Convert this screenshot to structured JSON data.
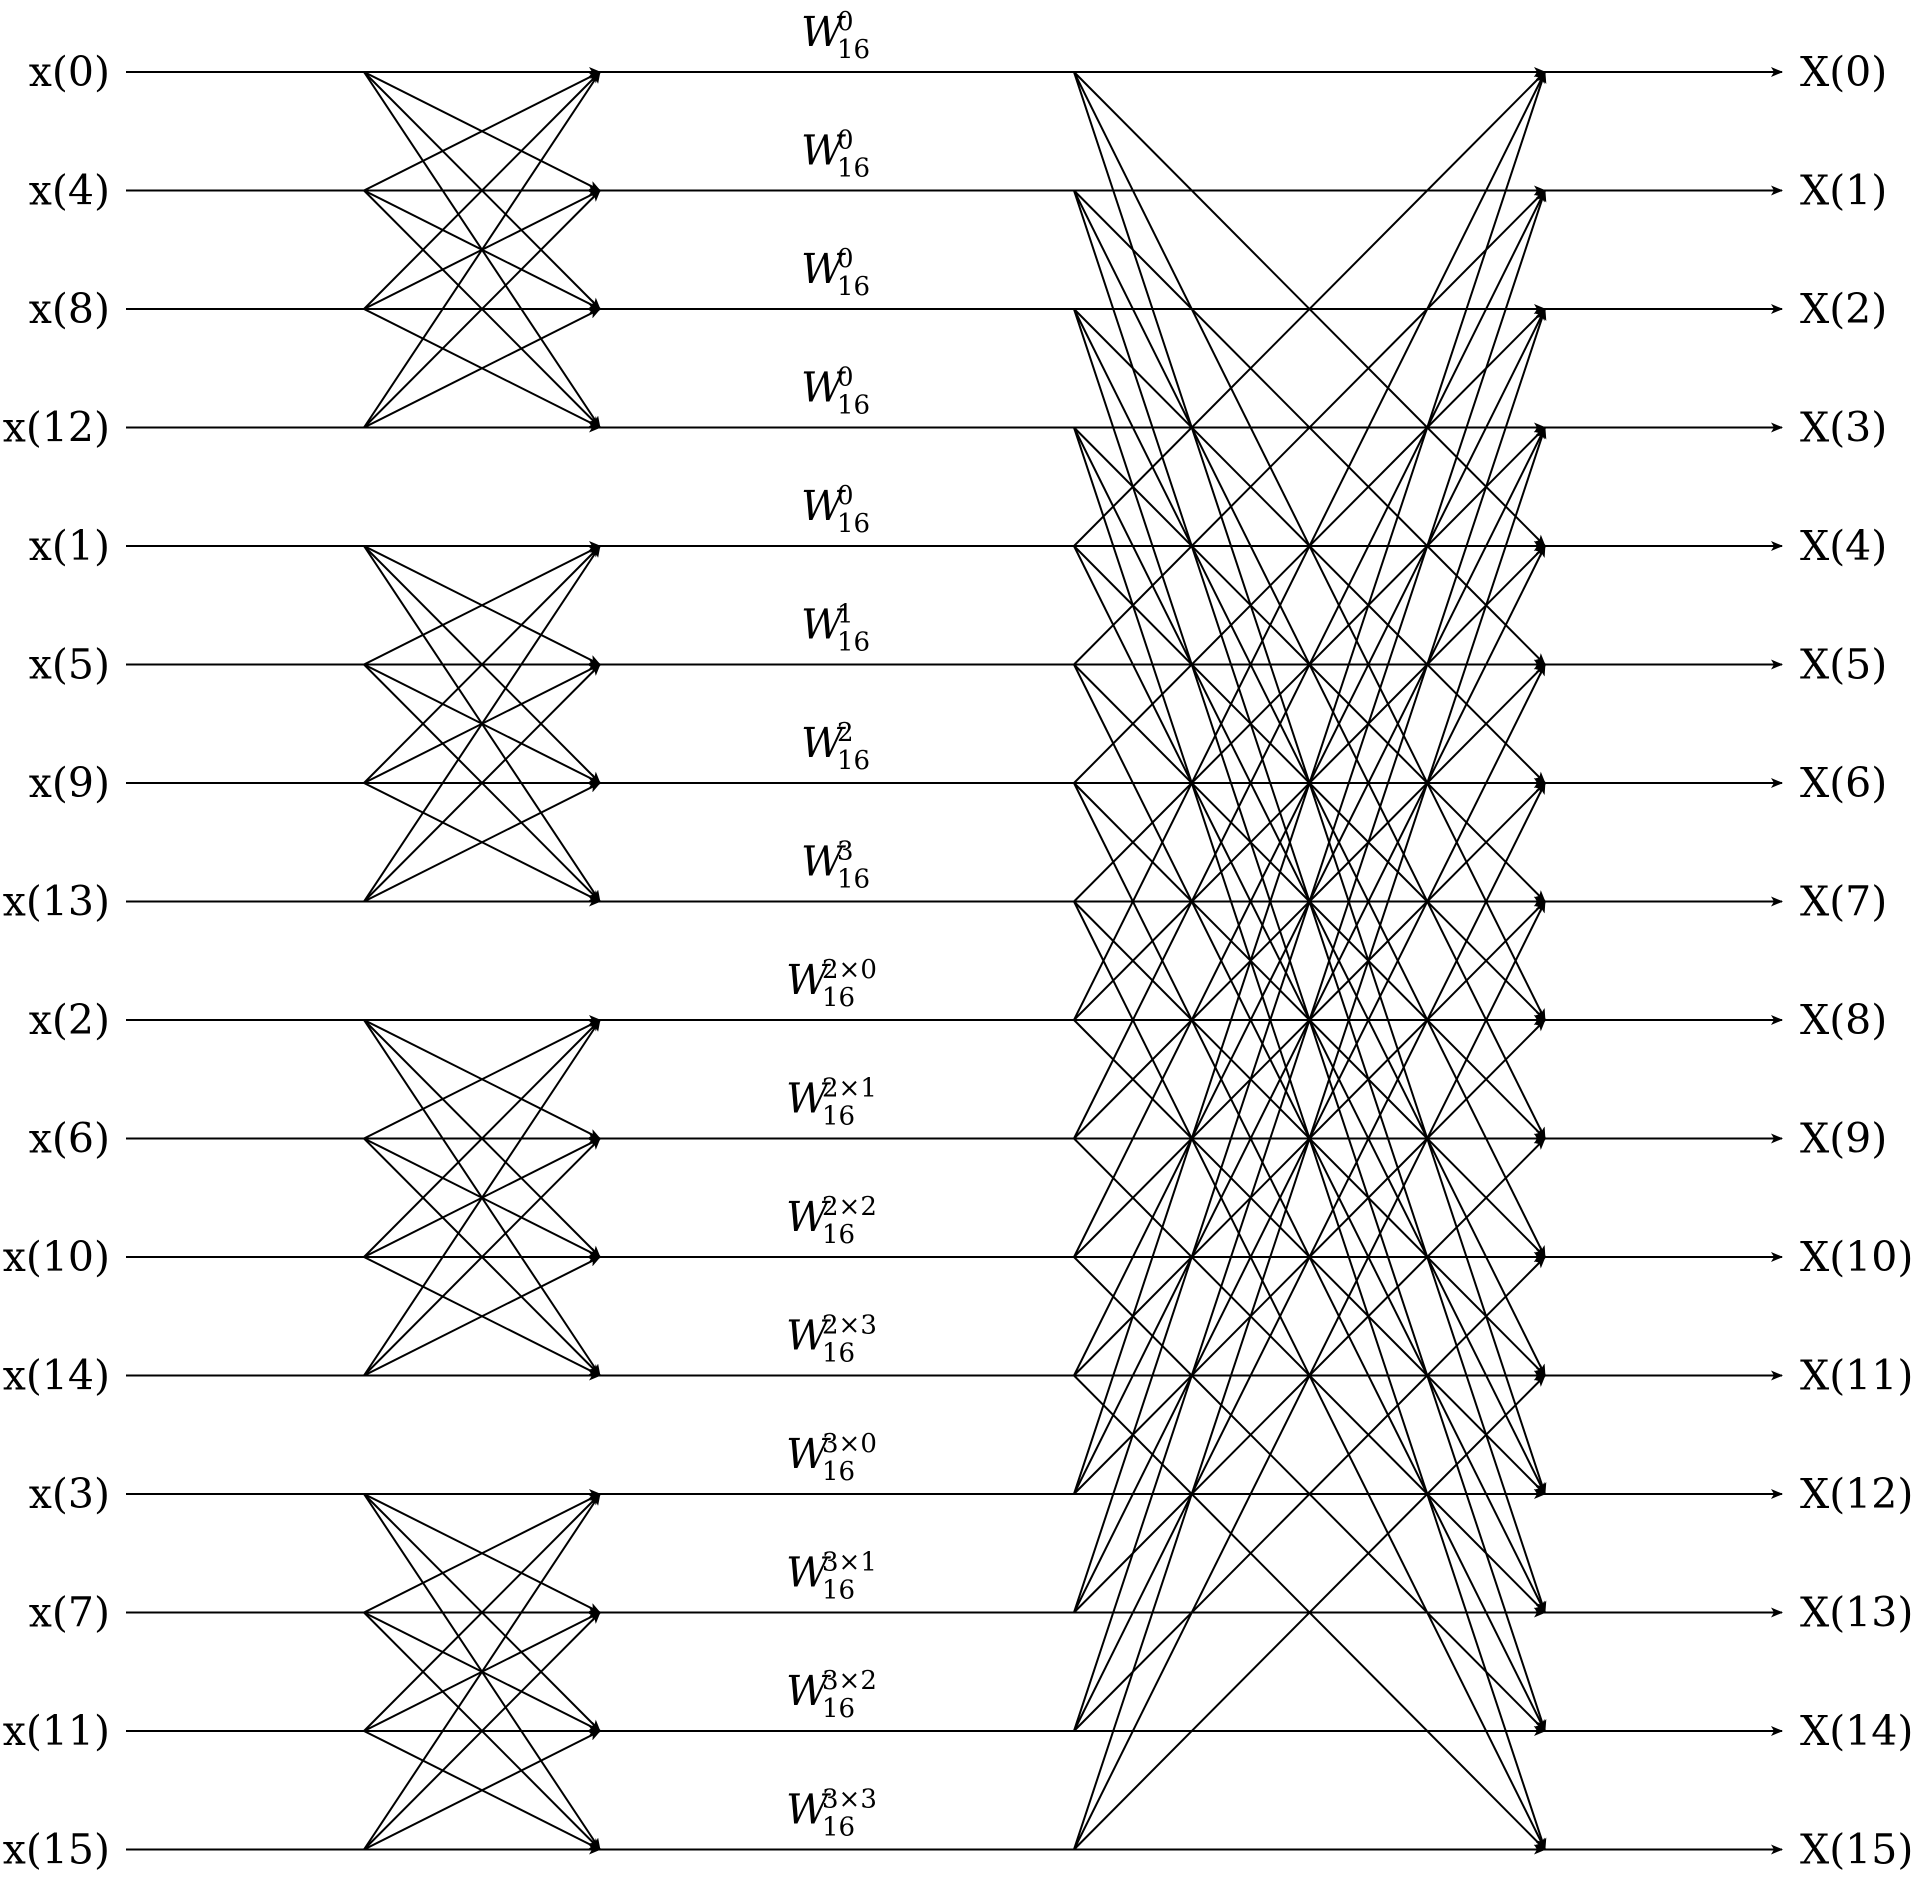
{
  "diagram": {
    "inputs": [
      "x(0)",
      "x(4)",
      "x(8)",
      "x(12)",
      "x(1)",
      "x(5)",
      "x(9)",
      "x(13)",
      "x(2)",
      "x(6)",
      "x(10)",
      "x(14)",
      "x(3)",
      "x(7)",
      "x(11)",
      "x(15)"
    ],
    "outputs": [
      "X(0)",
      "X(1)",
      "X(2)",
      "X(3)",
      "X(4)",
      "X(5)",
      "X(6)",
      "X(7)",
      "X(8)",
      "X(9)",
      "X(10)",
      "X(11)",
      "X(12)",
      "X(13)",
      "X(14)",
      "X(15)"
    ],
    "twiddles": [
      {
        "base": "W",
        "sub": "16",
        "sup": "0"
      },
      {
        "base": "W",
        "sub": "16",
        "sup": "0"
      },
      {
        "base": "W",
        "sub": "16",
        "sup": "0"
      },
      {
        "base": "W",
        "sub": "16",
        "sup": "0"
      },
      {
        "base": "W",
        "sub": "16",
        "sup": "0"
      },
      {
        "base": "W",
        "sub": "16",
        "sup": "1"
      },
      {
        "base": "W",
        "sub": "16",
        "sup": "2"
      },
      {
        "base": "W",
        "sub": "16",
        "sup": "3"
      },
      {
        "base": "W",
        "sub": "16",
        "sup": "2×0"
      },
      {
        "base": "W",
        "sub": "16",
        "sup": "2×1"
      },
      {
        "base": "W",
        "sub": "16",
        "sup": "2×2"
      },
      {
        "base": "W",
        "sub": "16",
        "sup": "2×3"
      },
      {
        "base": "W",
        "sub": "16",
        "sup": "3×0"
      },
      {
        "base": "W",
        "sub": "16",
        "sup": "3×1"
      },
      {
        "base": "W",
        "sub": "16",
        "sup": "3×2"
      },
      {
        "base": "W",
        "sub": "16",
        "sup": "3×3"
      }
    ]
  }
}
